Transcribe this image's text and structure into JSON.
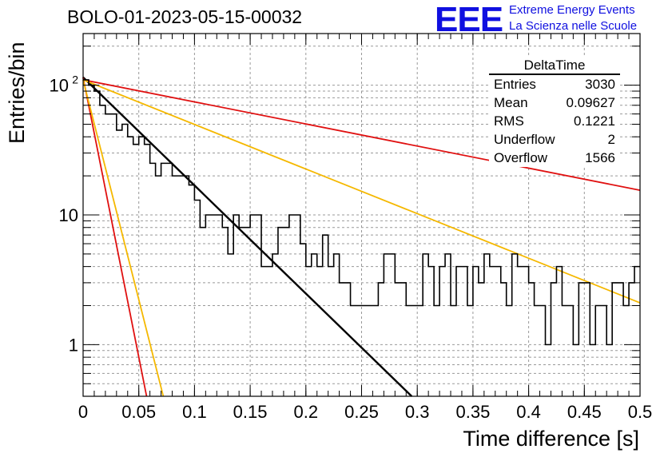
{
  "header": {
    "run_title": "BOLO-01-2023-05-15-00032",
    "logo_mark": "EEE",
    "logo_line1": "Extreme Energy Events",
    "logo_line2": "La Scienza nelle Scuole"
  },
  "stats_box": {
    "title": "DeltaTime",
    "rows": [
      {
        "label": "Entries",
        "value": "3030"
      },
      {
        "label": "Mean",
        "value": "0.09627"
      },
      {
        "label": "RMS",
        "value": "0.1221"
      },
      {
        "label": "Underflow",
        "value": "2"
      },
      {
        "label": "Overflow",
        "value": "1566"
      }
    ]
  },
  "chart_data": {
    "type": "line",
    "title": "BOLO-01-2023-05-15-00032",
    "xlabel": "Time difference [s]",
    "ylabel": "Entries/bin",
    "xlim": [
      0,
      0.5
    ],
    "ylim": [
      0.4,
      250
    ],
    "yscale": "log",
    "grid": true,
    "x_ticks": [
      "0",
      "0.05",
      "0.1",
      "0.15",
      "0.2",
      "0.25",
      "0.3",
      "0.35",
      "0.4",
      "0.45",
      "0.5"
    ],
    "y_ticks": [
      {
        "value": 1,
        "label": "1"
      },
      {
        "value": 10,
        "label": "10"
      },
      {
        "value": 100,
        "label": "10",
        "exponent": "2"
      }
    ],
    "histogram": {
      "name": "DeltaTime",
      "bin_width": 0.005,
      "color": "#000000",
      "counts": [
        110,
        100,
        90,
        70,
        60,
        60,
        45,
        50,
        40,
        35,
        40,
        35,
        25,
        20,
        25,
        25,
        20,
        20,
        20,
        17,
        13,
        8,
        10,
        10,
        10,
        8,
        5,
        10,
        8,
        8,
        10,
        10,
        4,
        4,
        5,
        8,
        8,
        10,
        10,
        6,
        4,
        5,
        4,
        7,
        4,
        5,
        3,
        3,
        2,
        2,
        2,
        2,
        2,
        3,
        5,
        5,
        3,
        3,
        2,
        2,
        2,
        5,
        4,
        2,
        4,
        5,
        2,
        4,
        4,
        2,
        4,
        3,
        5,
        4,
        4,
        3,
        2,
        5,
        4,
        4,
        3,
        2,
        2,
        1,
        3,
        4,
        2,
        2,
        1,
        3,
        3,
        1,
        2,
        2,
        1,
        3,
        3,
        2,
        3,
        4
      ]
    },
    "fits": [
      {
        "color": "#000000",
        "x": [
          0,
          0.295
        ],
        "y": [
          115,
          0.4
        ]
      },
      {
        "color": "#e01010",
        "x": [
          0,
          0.057
        ],
        "y": [
          115,
          0.4
        ]
      },
      {
        "color": "#f5b800",
        "x": [
          0,
          0.072
        ],
        "y": [
          110,
          0.4
        ]
      },
      {
        "color": "#e01010",
        "x": [
          0,
          0.5
        ],
        "y": [
          110,
          15.5
        ]
      },
      {
        "color": "#f5b800",
        "x": [
          0,
          0.5
        ],
        "y": [
          110,
          2.1
        ]
      }
    ]
  }
}
